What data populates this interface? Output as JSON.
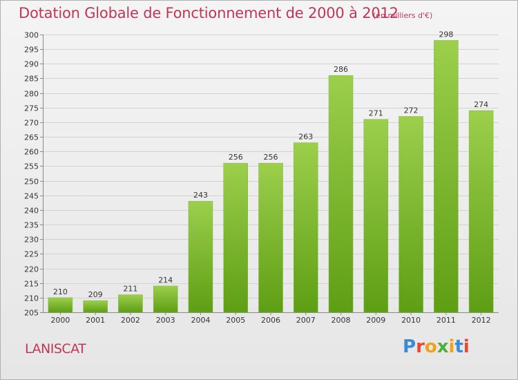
{
  "header": {
    "title": "Dotation Globale de Fonctionnement de 2000 à 2012",
    "unit": "(en milliers d'€)"
  },
  "footer": {
    "place": "LANISCAT",
    "logo": [
      "P",
      "r",
      "o",
      "x",
      "i",
      "t",
      "i"
    ]
  },
  "colors": {
    "title": "#c0365a",
    "bar_top": "#9ccf4c",
    "bar_bottom": "#5e9e14",
    "logo": [
      "#3a8ad6",
      "#e8482c",
      "#f2a21a",
      "#4caf3c",
      "#f2a21a",
      "#3a8ad6",
      "#e8482c"
    ]
  },
  "chart_data": {
    "type": "bar",
    "title": "Dotation Globale de Fonctionnement de 2000 à 2012",
    "subtitle": "(en milliers d'€)",
    "categories": [
      "2000",
      "2001",
      "2002",
      "2003",
      "2004",
      "2005",
      "2006",
      "2007",
      "2008",
      "2009",
      "2010",
      "2011",
      "2012"
    ],
    "values": [
      210,
      209,
      211,
      214,
      243,
      256,
      256,
      263,
      286,
      271,
      272,
      298,
      274
    ],
    "ylim": [
      205,
      300
    ],
    "yticks": [
      205,
      210,
      215,
      220,
      225,
      230,
      235,
      240,
      245,
      250,
      255,
      260,
      265,
      270,
      275,
      280,
      285,
      290,
      295,
      300
    ],
    "grid": true
  }
}
